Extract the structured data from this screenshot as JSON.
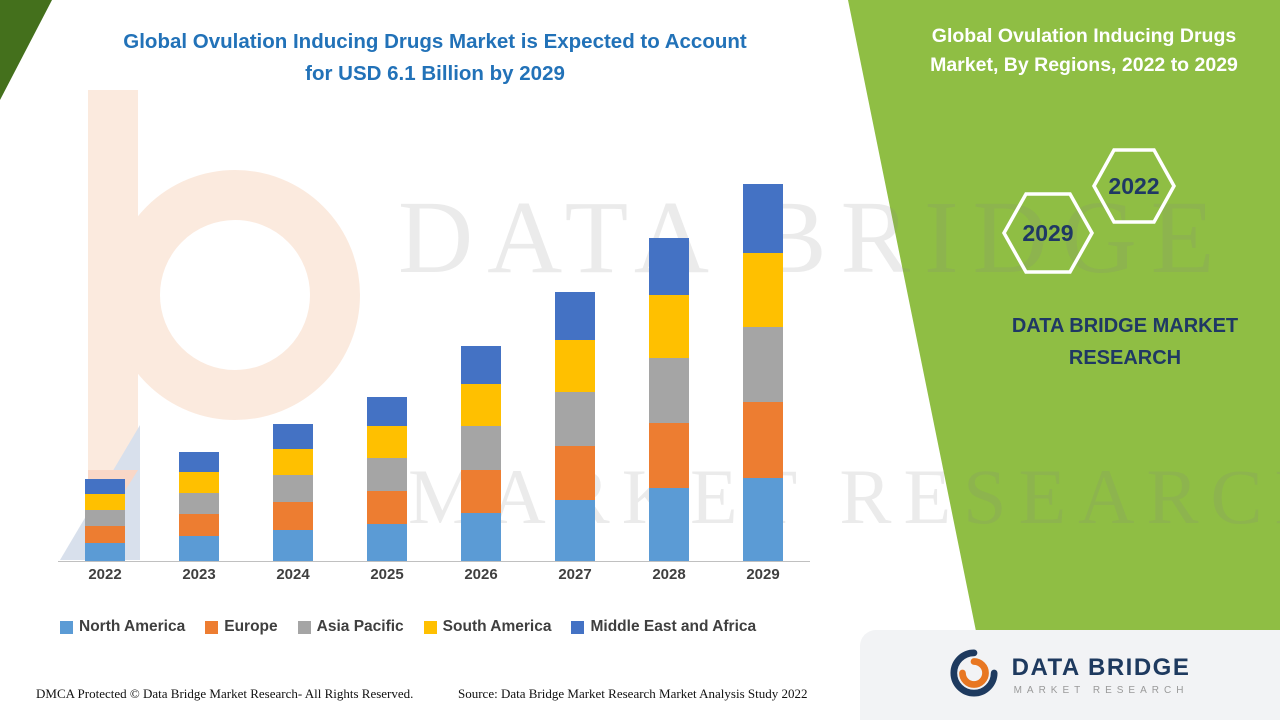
{
  "header": {
    "title_line1": "Global Ovulation Inducing Drugs Market is Expected to Account",
    "title_line2": "for USD 6.1 Billion by 2029"
  },
  "side_panel": {
    "heading": "Global Ovulation Inducing Drugs Market, By Regions, 2022 to 2029",
    "hexagon_back_label": "2029",
    "hexagon_front_label": "2022",
    "brand_line1": "DATA BRIDGE MARKET",
    "brand_line2": "RESEARCH",
    "panel_color": "#8fbe44",
    "corner_color": "#44701c",
    "brand_text_color": "#1f3864"
  },
  "watermark": {
    "line1": "DATA BRIDGE",
    "line2": "MARKET RESEARCH"
  },
  "chart_data": {
    "type": "bar",
    "stacked": true,
    "title": "Global Ovulation Inducing Drugs Market, By Regions, 2022 to 2029",
    "unit": "USD Billion",
    "categories": [
      "2022",
      "2023",
      "2024",
      "2025",
      "2026",
      "2027",
      "2028",
      "2029"
    ],
    "series": [
      {
        "name": "North America",
        "color": "#5B9BD5",
        "values": [
          0.3,
          0.4,
          0.5,
          0.6,
          0.78,
          0.98,
          1.18,
          1.35
        ]
      },
      {
        "name": "Europe",
        "color": "#ED7D31",
        "values": [
          0.27,
          0.36,
          0.45,
          0.54,
          0.7,
          0.88,
          1.06,
          1.22
        ]
      },
      {
        "name": "Asia Pacific",
        "color": "#A5A5A5",
        "values": [
          0.26,
          0.35,
          0.44,
          0.53,
          0.7,
          0.87,
          1.05,
          1.22
        ]
      },
      {
        "name": "South America",
        "color": "#FFC000",
        "values": [
          0.26,
          0.34,
          0.43,
          0.52,
          0.68,
          0.85,
          1.02,
          1.19
        ]
      },
      {
        "name": "Middle East and Africa",
        "color": "#4472C4",
        "values": [
          0.24,
          0.32,
          0.4,
          0.47,
          0.62,
          0.77,
          0.92,
          1.12
        ]
      }
    ],
    "totals": [
      1.33,
      1.77,
      2.22,
      2.66,
      3.48,
      4.35,
      5.23,
      6.1
    ],
    "ylim": [
      0,
      6.5
    ],
    "grid": false,
    "legend_position": "bottom",
    "xlabel": "",
    "ylabel": ""
  },
  "footer": {
    "dmca": "DMCA Protected © Data Bridge Market Research- All Rights Reserved.",
    "source": "Source: Data Bridge Market Research Market Analysis Study 2022"
  },
  "logo": {
    "name": "DATA BRIDGE",
    "subtitle": "MARKET RESEARCH"
  }
}
